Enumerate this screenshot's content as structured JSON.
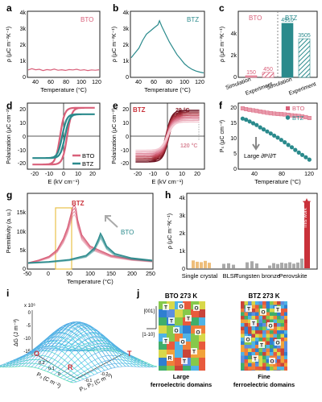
{
  "colors": {
    "bto": "#d9607a",
    "btz": "#2a8a8c",
    "bto_light": "#e89aab",
    "btz_light": "#8fc7c5",
    "grey": "#8c8c8c",
    "orange": "#e8a84f",
    "gold": "#e8c24a",
    "star": "#c9313a"
  },
  "panels": {
    "a": {
      "letter": "a",
      "legend": "BTO",
      "ylabel": "ρ (μC m⁻²K⁻¹)",
      "xlabel": "Temperature (°C)",
      "yticks": [
        "0",
        "1k",
        "2k",
        "3k",
        "4k"
      ],
      "xticks": [
        "40",
        "60",
        "80",
        "100",
        "120"
      ]
    },
    "b": {
      "letter": "b",
      "legend": "BTZ",
      "ylabel": "ρ (μC m⁻²K⁻¹)",
      "xlabel": "Temperature (°C)",
      "yticks": [
        "0",
        "1k",
        "2k",
        "3k",
        "4k"
      ],
      "xticks": [
        "40",
        "60",
        "80",
        "100",
        "120"
      ]
    },
    "c": {
      "letter": "c",
      "groups": [
        "BTO",
        "BTZ"
      ],
      "ylabel": "ρ (μC m⁻²K⁻¹)",
      "yticks": [
        "0",
        "2k",
        "4k"
      ],
      "xticks": [
        "Simulation",
        "Experiment",
        "Simulation",
        "Experiment"
      ],
      "bar_labels": [
        "150",
        "450",
        "4910",
        "3505"
      ]
    },
    "d": {
      "letter": "d",
      "ylabel": "Polarization (μC cm⁻²)",
      "xlabel": "E (kV cm⁻¹)",
      "yticks": [
        "-20",
        "-10",
        "0",
        "10",
        "20"
      ],
      "xticks": [
        "-20",
        "-10",
        "0",
        "10",
        "20"
      ],
      "legend": [
        "BTO",
        "BTZ"
      ]
    },
    "e": {
      "letter": "e",
      "tag": "BTZ",
      "t_high": "29 °C",
      "t_low": "120 °C",
      "ylabel": "Polarization (μC cm⁻²)",
      "xlabel": "E (kV cm⁻¹)",
      "yticks": [
        "-20",
        "-10",
        "0",
        "10",
        "20"
      ],
      "xticks": [
        "-20",
        "-10",
        "0",
        "10",
        "20"
      ]
    },
    "f": {
      "letter": "f",
      "ylabel": "Pₛ (μC cm⁻²)",
      "xlabel": "Temperature (°C)",
      "yticks": [
        "0",
        "5",
        "10",
        "15",
        "20"
      ],
      "xticks": [
        "40",
        "80",
        "120"
      ],
      "legend": [
        "BTO",
        "BTZ"
      ],
      "annotation": "Large ∂P/∂T"
    },
    "g": {
      "letter": "g",
      "ylabel": "Permittivity (a. u.)",
      "xlabel": "Temperature (°C)",
      "yticks": [
        "0",
        "5k",
        "10k",
        "15k"
      ],
      "xticks": [
        "-50",
        "0",
        "50",
        "100",
        "150",
        "200",
        "250"
      ],
      "labels": [
        "BTZ",
        "BTO"
      ]
    },
    "h": {
      "letter": "h",
      "ylabel": "ρ (μC m⁻²K⁻¹)",
      "yticks": [
        "0",
        "1k",
        "2k",
        "3k",
        "4k"
      ],
      "categories": [
        "Single crystal",
        "BLSF",
        "Tungsten bronze",
        "Perovskite"
      ],
      "this_work": "This work"
    },
    "i": {
      "letter": "i",
      "zlabel": "ΔG (J m⁻³)",
      "zscale": "x 10⁶",
      "zticks": [
        "0",
        "-5",
        "-10",
        "-15"
      ],
      "p1p2": "P₁, P₂ (C m⁻²)",
      "p3": "P₃ (C m⁻²)",
      "pticks": [
        "0.2",
        "0.1",
        "0",
        "-0.1",
        "-0.2"
      ],
      "points": [
        "O",
        "R",
        "T"
      ]
    },
    "j": {
      "letter": "j",
      "left_title": "BTO  273 K",
      "right_title": "BTZ  273 K",
      "left_caption": "Large ferroelectric domains",
      "right_caption": "Fine ferroelectric domains",
      "axis1": "[001]",
      "axis2": "[1-10]"
    }
  },
  "chart_data": [
    {
      "type": "line",
      "title": "",
      "xlabel": "Temperature (°C)",
      "ylabel": "ρ (μC m⁻²K⁻¹)",
      "xlim": [
        25,
        120
      ],
      "ylim": [
        0,
        4000
      ],
      "series": [
        {
          "name": "BTO",
          "x": [
            25,
            30,
            35,
            40,
            45,
            50,
            55,
            60,
            65,
            70,
            75,
            80,
            85,
            90,
            95,
            100,
            105,
            110,
            115,
            120
          ],
          "y": [
            420,
            500,
            430,
            460,
            380,
            440,
            410,
            470,
            400,
            430,
            390,
            440,
            420,
            460,
            400,
            430,
            380,
            420,
            400,
            430
          ]
        }
      ]
    },
    {
      "type": "line",
      "title": "",
      "xlabel": "Temperature (°C)",
      "ylabel": "ρ (μC m⁻²K⁻¹)",
      "xlim": [
        25,
        120
      ],
      "ylim": [
        0,
        4000
      ],
      "series": [
        {
          "name": "BTZ",
          "x": [
            25,
            30,
            35,
            40,
            45,
            50,
            55,
            60,
            62,
            65,
            70,
            75,
            80,
            85,
            90,
            95,
            100,
            105,
            110,
            115,
            120
          ],
          "y": [
            1200,
            1500,
            1800,
            2300,
            2700,
            2900,
            3100,
            3300,
            3550,
            3200,
            2700,
            2200,
            1800,
            1400,
            1100,
            800,
            600,
            450,
            350,
            280,
            230
          ]
        }
      ]
    },
    {
      "type": "bar",
      "title": "",
      "ylabel": "ρ (μC m⁻²K⁻¹)",
      "categories": [
        "BTO Simulation",
        "BTO Experiment",
        "BTZ Simulation",
        "BTZ Experiment"
      ],
      "values": [
        150,
        450,
        4910,
        3505
      ],
      "ylim": [
        0,
        6000
      ]
    },
    {
      "type": "line",
      "title": "",
      "xlabel": "E (kV cm⁻¹)",
      "ylabel": "Polarization (μC cm⁻²)",
      "xlim": [
        -25,
        25
      ],
      "ylim": [
        -25,
        25
      ],
      "series": [
        {
          "name": "BTO",
          "coercive": 2.5,
          "saturation": 22
        },
        {
          "name": "BTZ",
          "coercive": 1.0,
          "saturation": 17
        }
      ]
    },
    {
      "type": "line",
      "title": "",
      "xlabel": "E (kV cm⁻¹)",
      "ylabel": "Polarization (μC cm⁻²)",
      "xlim": [
        -25,
        25
      ],
      "ylim": [
        -25,
        25
      ],
      "series": [
        {
          "name": "29 °C",
          "saturation": 20
        },
        {
          "name": "120 °C",
          "saturation": 11
        }
      ]
    },
    {
      "type": "scatter",
      "title": "",
      "xlabel": "Temperature (°C)",
      "ylabel": "Pₛ (μC cm⁻²)",
      "xlim": [
        20,
        130
      ],
      "ylim": [
        0,
        22
      ],
      "series": [
        {
          "name": "BTO",
          "x": [
            25,
            30,
            35,
            40,
            45,
            50,
            55,
            60,
            65,
            70,
            75,
            80,
            85,
            90,
            95,
            100,
            105,
            110,
            115,
            120
          ],
          "y": [
            20.5,
            20.2,
            20.0,
            19.8,
            19.6,
            19.4,
            19.2,
            19.0,
            18.8,
            18.7,
            18.6,
            18.5,
            18.4,
            18.3,
            18.1,
            18.0,
            17.9,
            17.7,
            17.5,
            17.2
          ]
        },
        {
          "name": "BTZ",
          "x": [
            25,
            30,
            35,
            40,
            45,
            50,
            55,
            60,
            65,
            70,
            75,
            80,
            85,
            90,
            95,
            100,
            105,
            110,
            115,
            120
          ],
          "y": [
            17.0,
            16.6,
            16.0,
            15.4,
            14.8,
            14.0,
            13.3,
            12.6,
            11.9,
            11.2,
            10.5,
            9.7,
            8.9,
            8.0,
            7.2,
            6.3,
            5.4,
            4.6,
            3.8,
            3.0
          ]
        }
      ]
    },
    {
      "type": "line",
      "title": "",
      "xlabel": "Temperature (°C)",
      "ylabel": "Permittivity (a. u.)",
      "xlim": [
        -50,
        250
      ],
      "ylim": [
        0,
        20000
      ],
      "series": [
        {
          "name": "BTZ",
          "x": [
            -50,
            -25,
            0,
            20,
            35,
            45,
            52,
            58,
            62,
            66,
            70,
            80,
            100,
            150,
            200,
            250
          ],
          "y": [
            1500,
            2200,
            3200,
            5000,
            8000,
            11000,
            14000,
            16500,
            17000,
            16000,
            13000,
            9000,
            6000,
            3500,
            2500,
            2000
          ]
        },
        {
          "name": "BTO",
          "x": [
            -50,
            0,
            50,
            90,
            110,
            120,
            125,
            130,
            140,
            160,
            200,
            250
          ],
          "y": [
            1500,
            1800,
            2400,
            3500,
            5500,
            8000,
            9500,
            8500,
            6000,
            4000,
            2800,
            2200
          ]
        }
      ]
    },
    {
      "type": "bar",
      "title": "",
      "ylabel": "ρ (μC m⁻²K⁻¹)",
      "ylim": [
        0,
        4000
      ],
      "categories": [
        "Single crystal",
        "BLSF",
        "Tungsten bronze",
        "Perovskite"
      ],
      "values": [
        400,
        270,
        380,
        4000
      ]
    }
  ]
}
